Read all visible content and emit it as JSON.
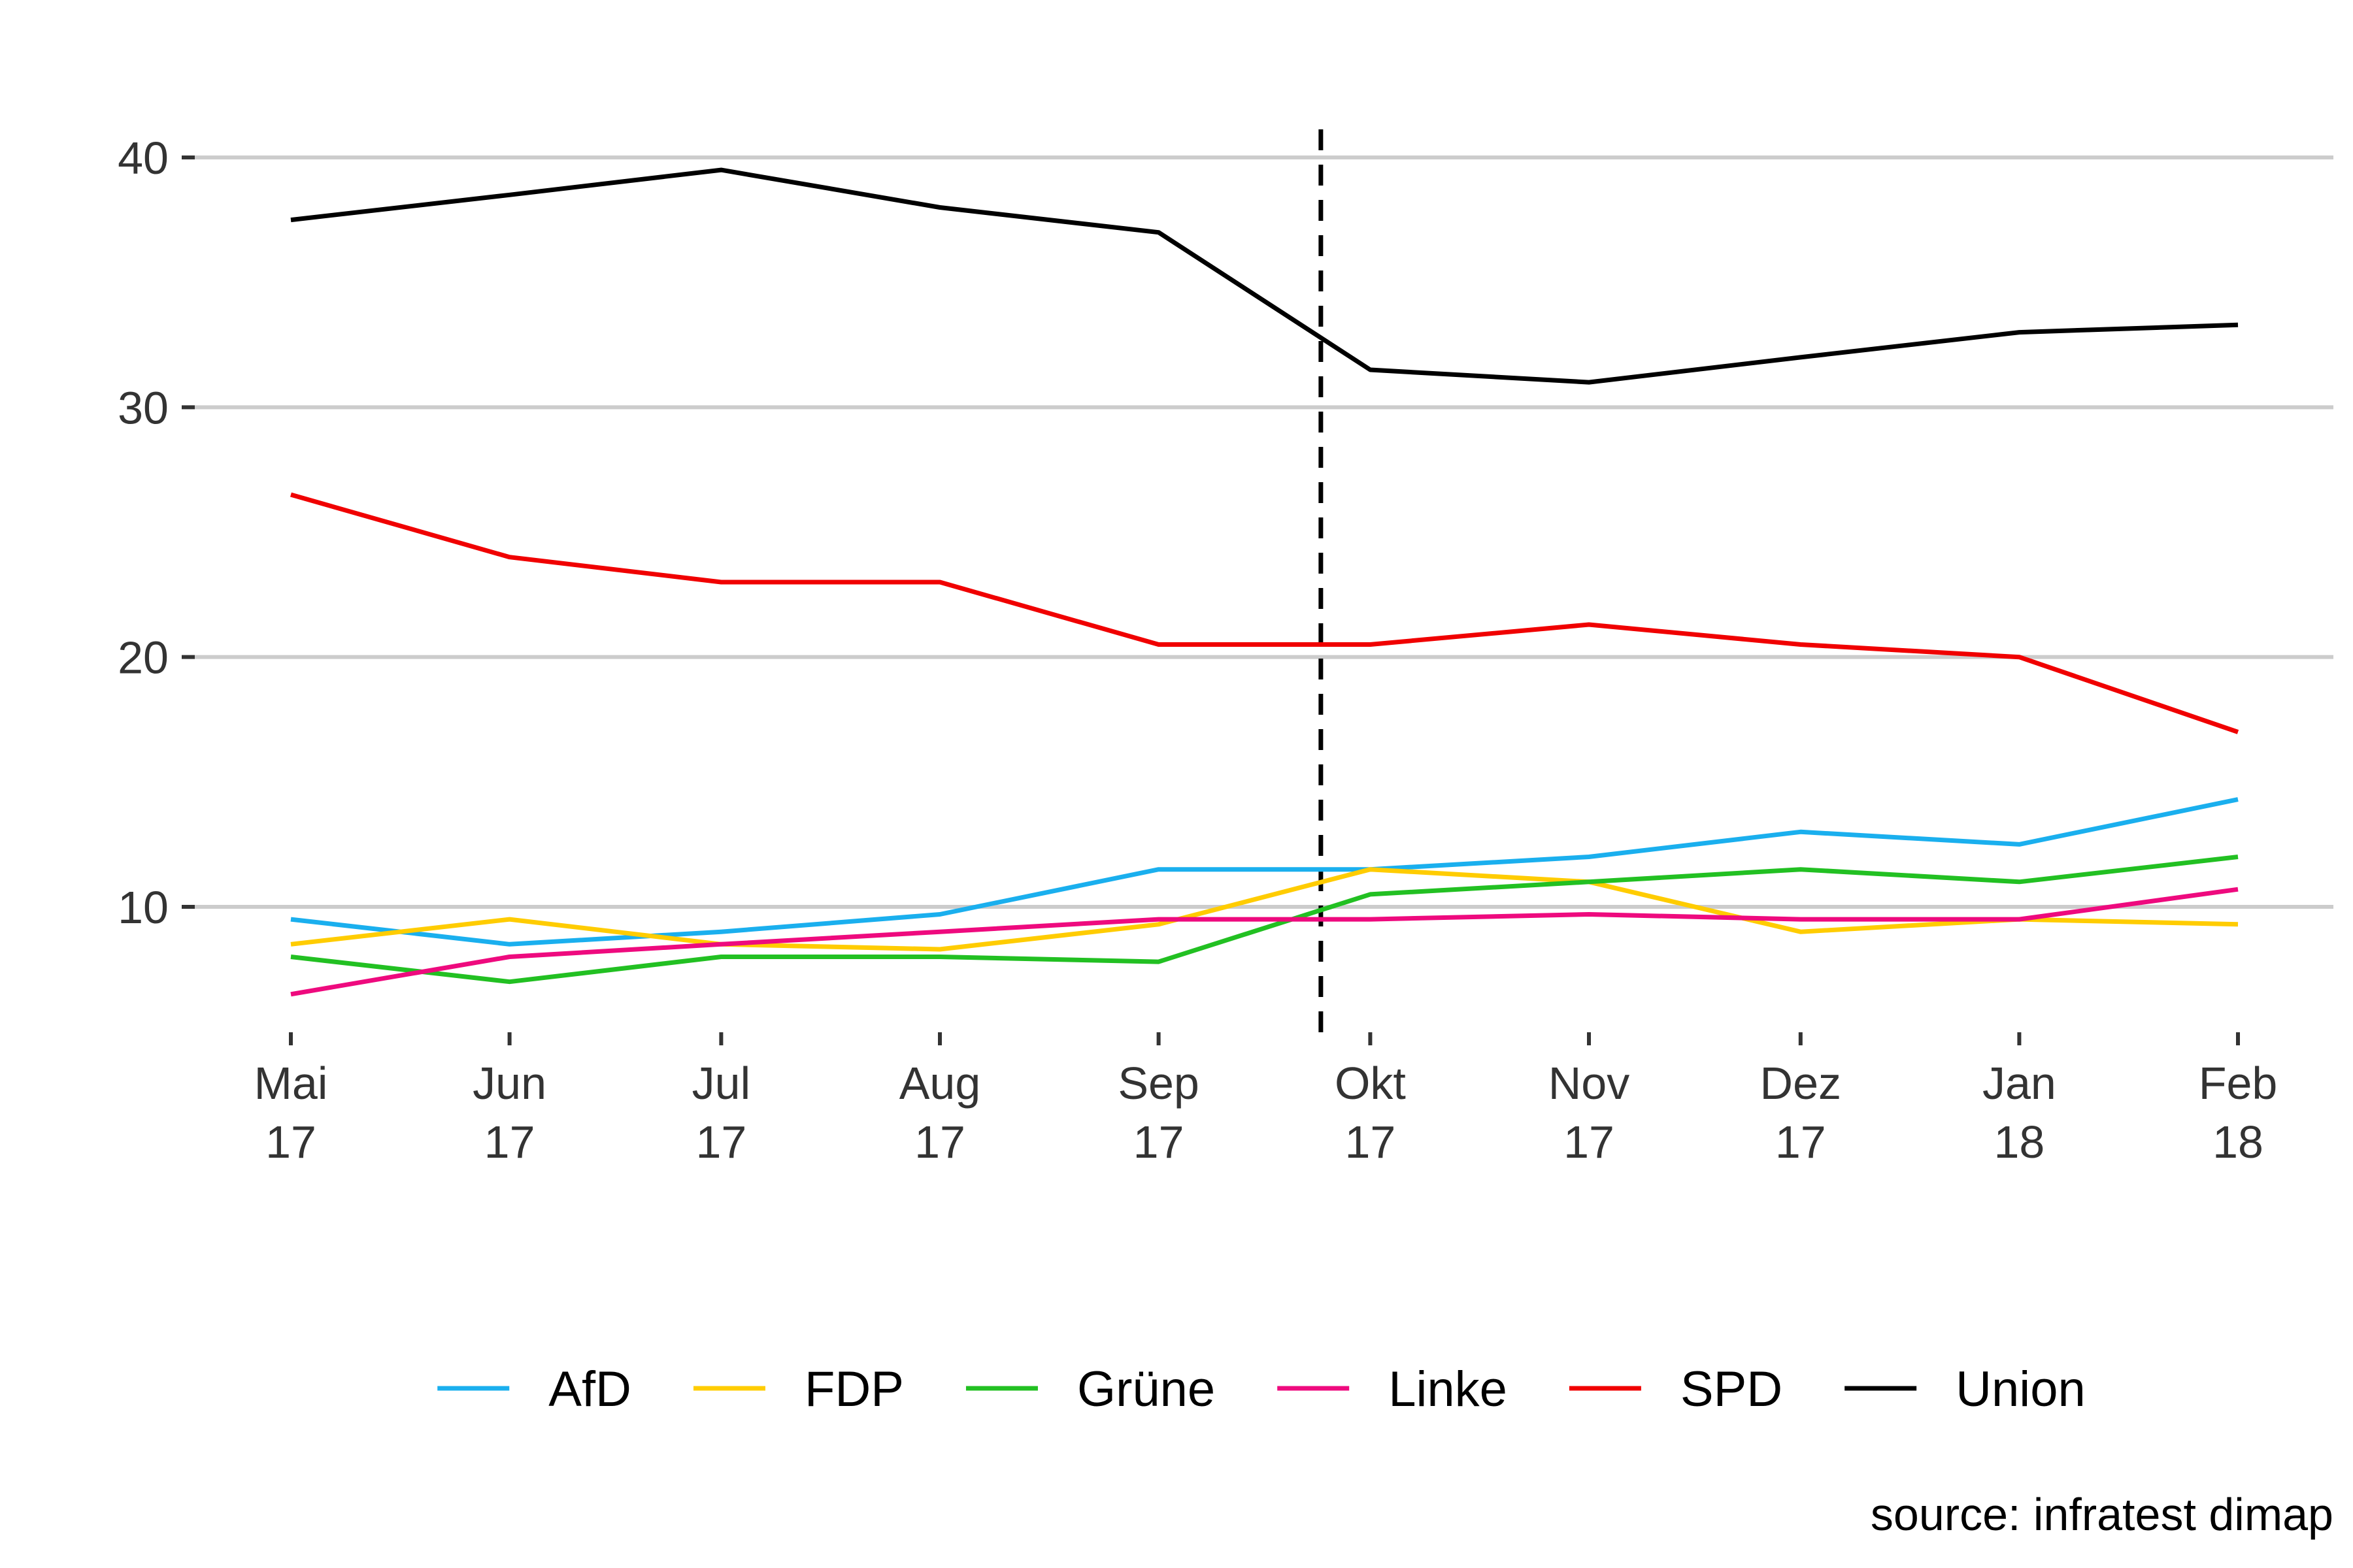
{
  "chart_data": {
    "type": "line",
    "title": "",
    "xlabel": "",
    "ylabel": "",
    "x": [
      {
        "month": "Mai",
        "year": "17"
      },
      {
        "month": "Jun",
        "year": "17"
      },
      {
        "month": "Jul",
        "year": "17"
      },
      {
        "month": "Aug",
        "year": "17"
      },
      {
        "month": "Sep",
        "year": "17"
      },
      {
        "month": "Okt",
        "year": "17"
      },
      {
        "month": "Nov",
        "year": "17"
      },
      {
        "month": "Dez",
        "year": "17"
      },
      {
        "month": "Jan",
        "year": "18"
      },
      {
        "month": "Feb",
        "year": "18"
      }
    ],
    "x_dates": [
      "2017-05-01",
      "2017-06-01",
      "2017-07-01",
      "2017-08-01",
      "2017-09-01",
      "2017-10-01",
      "2017-11-01",
      "2017-12-01",
      "2018-01-01",
      "2018-02-01"
    ],
    "y_ticks": [
      10,
      20,
      30,
      40
    ],
    "ylim": [
      5,
      42
    ],
    "grid": "horizontal",
    "legend_position": "bottom",
    "reference_line": {
      "date": "2017-09-24",
      "style": "dashed",
      "color": "#000000"
    },
    "series": [
      {
        "name": "AfD",
        "color": "#1AAFEE",
        "values": [
          9.5,
          8.5,
          9,
          9.7,
          11.5,
          11.5,
          12,
          13,
          12.5,
          14.3
        ]
      },
      {
        "name": "FDP",
        "color": "#FFCC00",
        "values": [
          8.5,
          9.5,
          8.5,
          8.3,
          9.3,
          11.5,
          11,
          9,
          9.5,
          9.3
        ]
      },
      {
        "name": "Grüne",
        "color": "#22C022",
        "values": [
          8,
          7,
          8,
          8,
          7.8,
          10.5,
          11,
          11.5,
          11,
          12
        ]
      },
      {
        "name": "Linke",
        "color": "#EE0A7E",
        "values": [
          6.5,
          8,
          8.5,
          9,
          9.5,
          9.5,
          9.7,
          9.5,
          9.5,
          10.7
        ]
      },
      {
        "name": "SPD",
        "color": "#F00000",
        "values": [
          26.5,
          24,
          23,
          23,
          20.5,
          20.5,
          21.3,
          20.5,
          20,
          17
        ]
      },
      {
        "name": "Union",
        "color": "#000000",
        "values": [
          37.5,
          38.5,
          39.5,
          38,
          37,
          31.5,
          31,
          32,
          33,
          33.3
        ]
      }
    ],
    "caption": "source: infratest dimap"
  }
}
